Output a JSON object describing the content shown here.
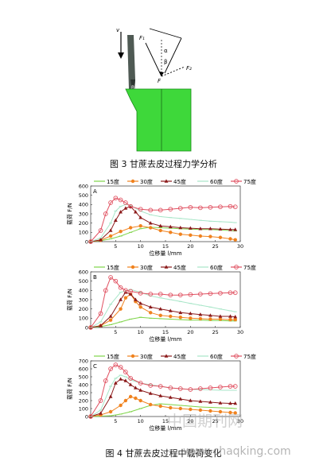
{
  "figure3": {
    "caption": "图 3  甘蔗去皮过程力学分析",
    "labels": {
      "v": "v",
      "F1": "F₁",
      "alpha": "α",
      "beta": "β",
      "F": "F",
      "F2": "F₂",
      "B": "B"
    }
  },
  "figure4": {
    "caption": "图 4  甘蔗去皮过程中载荷变化",
    "watermark": {
      "cn": "中国期刊网",
      "url": "www.chaqking.com"
    }
  },
  "chart_data": [
    {
      "type": "line",
      "panel": "A",
      "legend": [
        "15度",
        "30度",
        "45度",
        "60度",
        "75度"
      ],
      "legend_placement": "top",
      "xlabel": "位移量 l/mm",
      "ylabel": "载荷 F/N",
      "xlim": [
        0,
        30
      ],
      "ylim": [
        0,
        600
      ],
      "xticks": [
        5,
        10,
        15,
        20,
        25,
        30
      ],
      "yticks": [
        0,
        100,
        200,
        300,
        400,
        500,
        600
      ],
      "colors": {
        "15度": "#7fd44a",
        "30度": "#f0821e",
        "45度": "#8b1a1a",
        "60度": "#a8e6c8",
        "75度": "#e05060"
      },
      "series": [
        {
          "name": "15度",
          "x": [
            0,
            2,
            4,
            6,
            8,
            10,
            12,
            14,
            16,
            18,
            20,
            22,
            24,
            26,
            28,
            29
          ],
          "y": [
            0,
            10,
            30,
            60,
            100,
            140,
            155,
            150,
            145,
            140,
            135,
            130,
            130,
            125,
            120,
            115
          ]
        },
        {
          "name": "30度",
          "x": [
            0,
            2,
            4,
            6,
            8,
            10,
            12,
            14,
            16,
            18,
            20,
            22,
            24,
            26,
            28,
            29
          ],
          "y": [
            0,
            15,
            60,
            110,
            150,
            170,
            150,
            120,
            100,
            80,
            70,
            60,
            55,
            45,
            30,
            20
          ]
        },
        {
          "name": "45度",
          "x": [
            0,
            2,
            4,
            5,
            6,
            7,
            8,
            9,
            10,
            12,
            14,
            16,
            18,
            20,
            22,
            24,
            26,
            28,
            29
          ],
          "y": [
            0,
            20,
            120,
            230,
            320,
            360,
            380,
            320,
            260,
            200,
            170,
            160,
            150,
            145,
            140,
            140,
            135,
            130,
            130
          ]
        },
        {
          "name": "60度",
          "x": [
            0,
            2,
            4,
            5,
            6,
            7,
            8,
            10,
            12,
            14,
            16,
            18,
            20,
            22,
            24,
            26,
            28,
            29
          ],
          "y": [
            0,
            40,
            200,
            330,
            380,
            400,
            390,
            330,
            290,
            270,
            260,
            250,
            240,
            230,
            220,
            215,
            210,
            205
          ]
        },
        {
          "name": "75度",
          "x": [
            0,
            2,
            3,
            4,
            5,
            6,
            7,
            8,
            10,
            12,
            14,
            16,
            18,
            20,
            22,
            24,
            26,
            28,
            29
          ],
          "y": [
            0,
            120,
            300,
            420,
            470,
            450,
            420,
            380,
            350,
            340,
            340,
            350,
            360,
            370,
            365,
            370,
            375,
            380,
            375
          ]
        }
      ]
    },
    {
      "type": "line",
      "panel": "B",
      "legend": [
        "15度",
        "30度",
        "45度",
        "60度",
        "75度"
      ],
      "legend_placement": "top",
      "xlabel": "位移量 l/mm",
      "ylabel": "载荷 F/N",
      "xlim": [
        0,
        30
      ],
      "ylim": [
        0,
        600
      ],
      "xticks": [
        5,
        10,
        15,
        20,
        25,
        30
      ],
      "yticks": [
        0,
        100,
        200,
        300,
        400,
        500,
        600
      ],
      "colors": {
        "15度": "#7fd44a",
        "30度": "#f0821e",
        "45度": "#8b1a1a",
        "60度": "#a8e6c8",
        "75度": "#e05060"
      },
      "series": [
        {
          "name": "15度",
          "x": [
            0,
            2,
            4,
            6,
            8,
            10,
            12,
            14,
            16,
            18,
            20,
            22,
            24,
            26,
            28,
            29
          ],
          "y": [
            0,
            10,
            30,
            60,
            90,
            110,
            100,
            95,
            90,
            85,
            80,
            80,
            75,
            75,
            70,
            70
          ]
        },
        {
          "name": "30度",
          "x": [
            0,
            2,
            4,
            6,
            7,
            8,
            9,
            10,
            12,
            14,
            16,
            18,
            20,
            22,
            24,
            26,
            28,
            29
          ],
          "y": [
            0,
            20,
            80,
            200,
            320,
            360,
            280,
            220,
            160,
            130,
            120,
            110,
            100,
            95,
            90,
            90,
            85,
            85
          ]
        },
        {
          "name": "45度",
          "x": [
            0,
            2,
            4,
            6,
            7,
            8,
            9,
            10,
            12,
            14,
            16,
            18,
            20,
            22,
            24,
            26,
            28,
            29
          ],
          "y": [
            0,
            20,
            120,
            300,
            380,
            360,
            300,
            260,
            220,
            200,
            180,
            160,
            150,
            140,
            130,
            120,
            120,
            115
          ]
        },
        {
          "name": "60度",
          "x": [
            0,
            2,
            4,
            6,
            8,
            10,
            12,
            14,
            16,
            18,
            20,
            22,
            24,
            26,
            28,
            29
          ],
          "y": [
            0,
            60,
            250,
            380,
            410,
            380,
            340,
            320,
            300,
            280,
            260,
            240,
            220,
            200,
            180,
            170
          ]
        },
        {
          "name": "75度",
          "x": [
            0,
            2,
            3,
            4,
            5,
            6,
            7,
            8,
            10,
            12,
            14,
            16,
            18,
            20,
            22,
            24,
            26,
            28,
            29
          ],
          "y": [
            0,
            150,
            400,
            540,
            500,
            430,
            400,
            390,
            370,
            360,
            360,
            350,
            350,
            355,
            360,
            365,
            370,
            375,
            375
          ]
        }
      ]
    },
    {
      "type": "line",
      "panel": "C",
      "legend": [
        "15度",
        "30度",
        "45度",
        "60度",
        "75度"
      ],
      "legend_placement": "top",
      "xlabel": "位移量 l/mm",
      "ylabel": "载荷 F/N",
      "xlim": [
        0,
        30
      ],
      "ylim": [
        0,
        700
      ],
      "xticks": [
        5,
        10,
        15,
        20,
        25,
        30
      ],
      "yticks": [
        0,
        100,
        200,
        300,
        400,
        500,
        600,
        700
      ],
      "colors": {
        "15度": "#7fd44a",
        "30度": "#f0821e",
        "45度": "#8b1a1a",
        "60度": "#a8e6c8",
        "75度": "#e05060"
      },
      "series": [
        {
          "name": "15度",
          "x": [
            0,
            4,
            6,
            8,
            10,
            12,
            14,
            16,
            18,
            20,
            22,
            24,
            26,
            28,
            29
          ],
          "y": [
            0,
            10,
            30,
            60,
            100,
            140,
            160,
            150,
            140,
            130,
            120,
            115,
            110,
            105,
            100
          ]
        },
        {
          "name": "30度",
          "x": [
            0,
            2,
            4,
            6,
            7,
            8,
            9,
            10,
            12,
            14,
            16,
            18,
            20,
            22,
            24,
            26,
            28,
            29
          ],
          "y": [
            0,
            20,
            60,
            140,
            200,
            250,
            230,
            200,
            150,
            130,
            110,
            100,
            90,
            80,
            70,
            60,
            50,
            45
          ]
        },
        {
          "name": "45度",
          "x": [
            0,
            2,
            4,
            5,
            6,
            7,
            8,
            9,
            10,
            12,
            14,
            16,
            18,
            20,
            22,
            24,
            26,
            28,
            29
          ],
          "y": [
            0,
            40,
            250,
            420,
            470,
            450,
            400,
            360,
            330,
            290,
            260,
            240,
            220,
            200,
            190,
            180,
            170,
            165,
            165
          ]
        },
        {
          "name": "60度",
          "x": [
            0,
            2,
            4,
            5,
            6,
            7,
            8,
            10,
            12,
            14,
            16,
            18,
            20,
            22,
            24,
            26,
            28,
            29
          ],
          "y": [
            0,
            80,
            380,
            480,
            520,
            500,
            460,
            420,
            400,
            380,
            360,
            350,
            340,
            340,
            335,
            330,
            330,
            330
          ]
        },
        {
          "name": "75度",
          "x": [
            0,
            2,
            3,
            4,
            5,
            6,
            7,
            8,
            10,
            12,
            14,
            16,
            18,
            20,
            22,
            24,
            26,
            28,
            29
          ],
          "y": [
            0,
            200,
            450,
            600,
            650,
            620,
            560,
            480,
            420,
            390,
            380,
            360,
            350,
            340,
            350,
            360,
            370,
            380,
            380
          ]
        }
      ]
    }
  ]
}
